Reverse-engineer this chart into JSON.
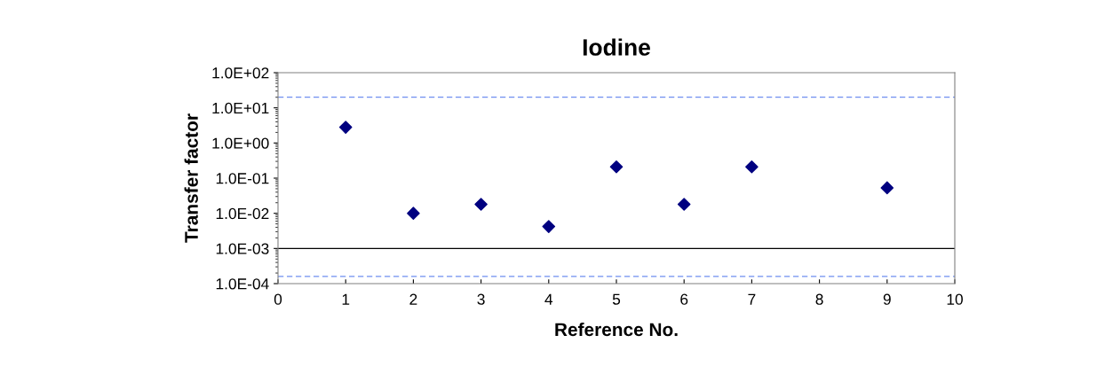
{
  "chart_data": {
    "type": "scatter",
    "title": "Iodine",
    "xlabel": "Reference No.",
    "ylabel": "Transfer factor",
    "x": [
      1,
      2,
      3,
      4,
      5,
      6,
      7,
      9
    ],
    "series": [
      {
        "color": "#000080",
        "values": [
          2.8,
          0.01,
          0.018,
          0.0042,
          0.21,
          0.018,
          0.21,
          0.053
        ]
      }
    ],
    "marker": "diamond",
    "log": "y",
    "grid": false,
    "legend": false,
    "xlim": [
      0,
      10
    ],
    "xticks": [
      0,
      1,
      2,
      3,
      4,
      5,
      6,
      7,
      8,
      9,
      10
    ],
    "ylim": [
      0.0001,
      100
    ],
    "yticks": [
      {
        "value": 0.0001,
        "label": "1.0E-04"
      },
      {
        "value": 0.001,
        "label": "1.0E-03"
      },
      {
        "value": 0.01,
        "label": "1.0E-02"
      },
      {
        "value": 0.1,
        "label": "1.0E-01"
      },
      {
        "value": 1,
        "label": "1.0E+00"
      },
      {
        "value": 10,
        "label": "1.0E+01"
      },
      {
        "value": 100,
        "label": "1.0E+02"
      }
    ],
    "ref_lines": [
      {
        "axis": "y",
        "value": 20,
        "label": null,
        "color": "#6f8ff0",
        "line_style": "dashed"
      },
      {
        "axis": "y",
        "value": 0.001,
        "label": null,
        "color": "#000000",
        "line_style": "solid"
      },
      {
        "axis": "y",
        "value": 0.00016,
        "label": null,
        "color": "#6f8ff0",
        "line_style": "dashed"
      }
    ]
  }
}
